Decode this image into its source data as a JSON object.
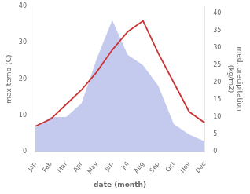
{
  "chart_data": {
    "type": "line",
    "categories": [
      "Jan",
      "Feb",
      "Mar",
      "Apr",
      "May",
      "Jun",
      "Jul",
      "Aug",
      "Sep",
      "Oct",
      "Nov",
      "Dec"
    ],
    "xlabel": "date (month)",
    "ylabel": "max temp (C)",
    "y2label": "med. precipitation\n(kg/m2)",
    "series": [
      {
        "type": "area",
        "color": "#b0b8e8",
        "axis": "y2",
        "values": [
          7,
          10,
          10,
          14,
          27,
          38,
          28,
          25,
          19,
          8,
          5,
          3
        ]
      },
      {
        "type": "line",
        "color": "#cc3333",
        "values": [
          7,
          9,
          13,
          17,
          22,
          28,
          33,
          36,
          27,
          19,
          11,
          8
        ]
      }
    ],
    "ylim": [
      0,
      40
    ],
    "yticks": [
      0,
      10,
      20,
      30,
      40
    ],
    "y2lim": [
      0,
      42
    ],
    "y2ticks": [
      0,
      5,
      10,
      15,
      20,
      25,
      30,
      35,
      40
    ],
    "grid": false
  }
}
